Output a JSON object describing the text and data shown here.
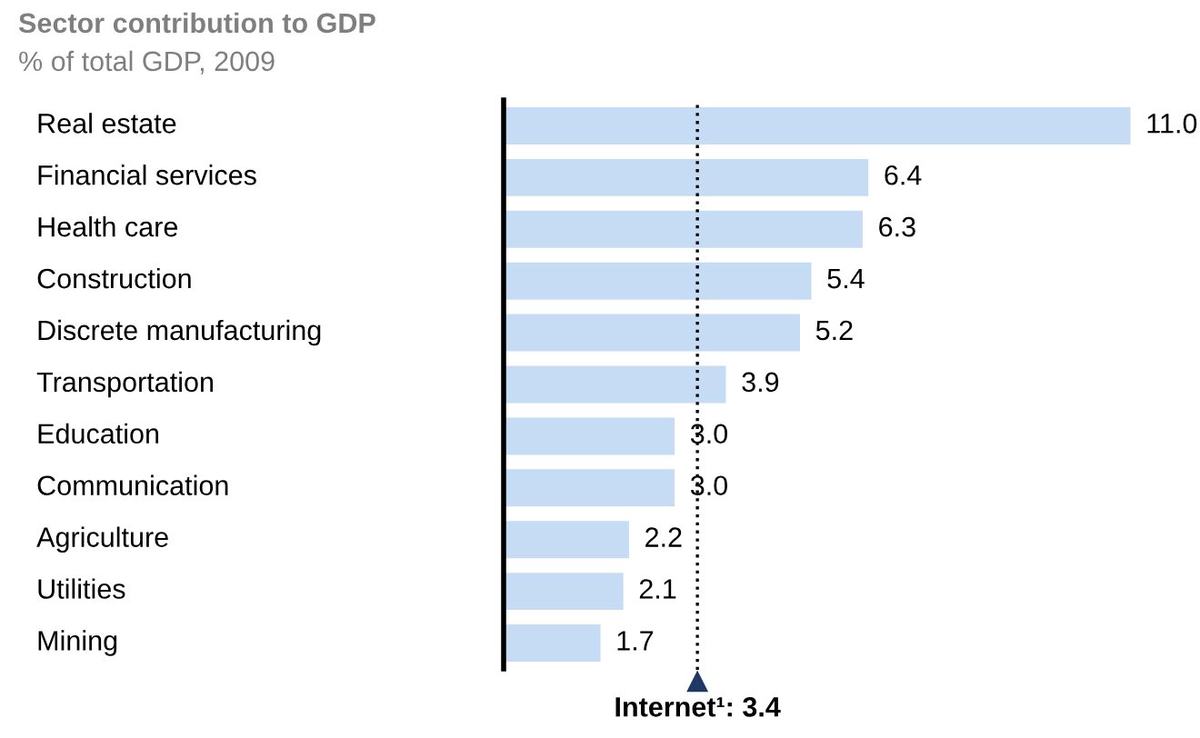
{
  "chart_data": {
    "type": "bar",
    "orientation": "horizontal",
    "title": "Sector contribution to GDP",
    "subtitle": "% of total GDP, 2009",
    "categories": [
      "Real estate",
      "Financial services",
      "Health care",
      "Construction",
      "Discrete manufacturing",
      "Transportation",
      "Education",
      "Communication",
      "Agriculture",
      "Utilities",
      "Mining"
    ],
    "values": [
      11.0,
      6.4,
      6.3,
      5.4,
      5.2,
      3.9,
      3.0,
      3.0,
      2.2,
      2.1,
      1.7
    ],
    "value_labels": [
      "11.0",
      "6.4",
      "6.3",
      "5.4",
      "5.2",
      "3.9",
      "3.0",
      "3.0",
      "2.2",
      "2.1",
      "1.7"
    ],
    "color": "#c6dcf5",
    "ref_lines": [
      {
        "axis": "x",
        "value": 3.4,
        "label": "Internet¹: 3.4",
        "color": "#000000",
        "line_style": "dotted"
      }
    ],
    "legend": false
  }
}
